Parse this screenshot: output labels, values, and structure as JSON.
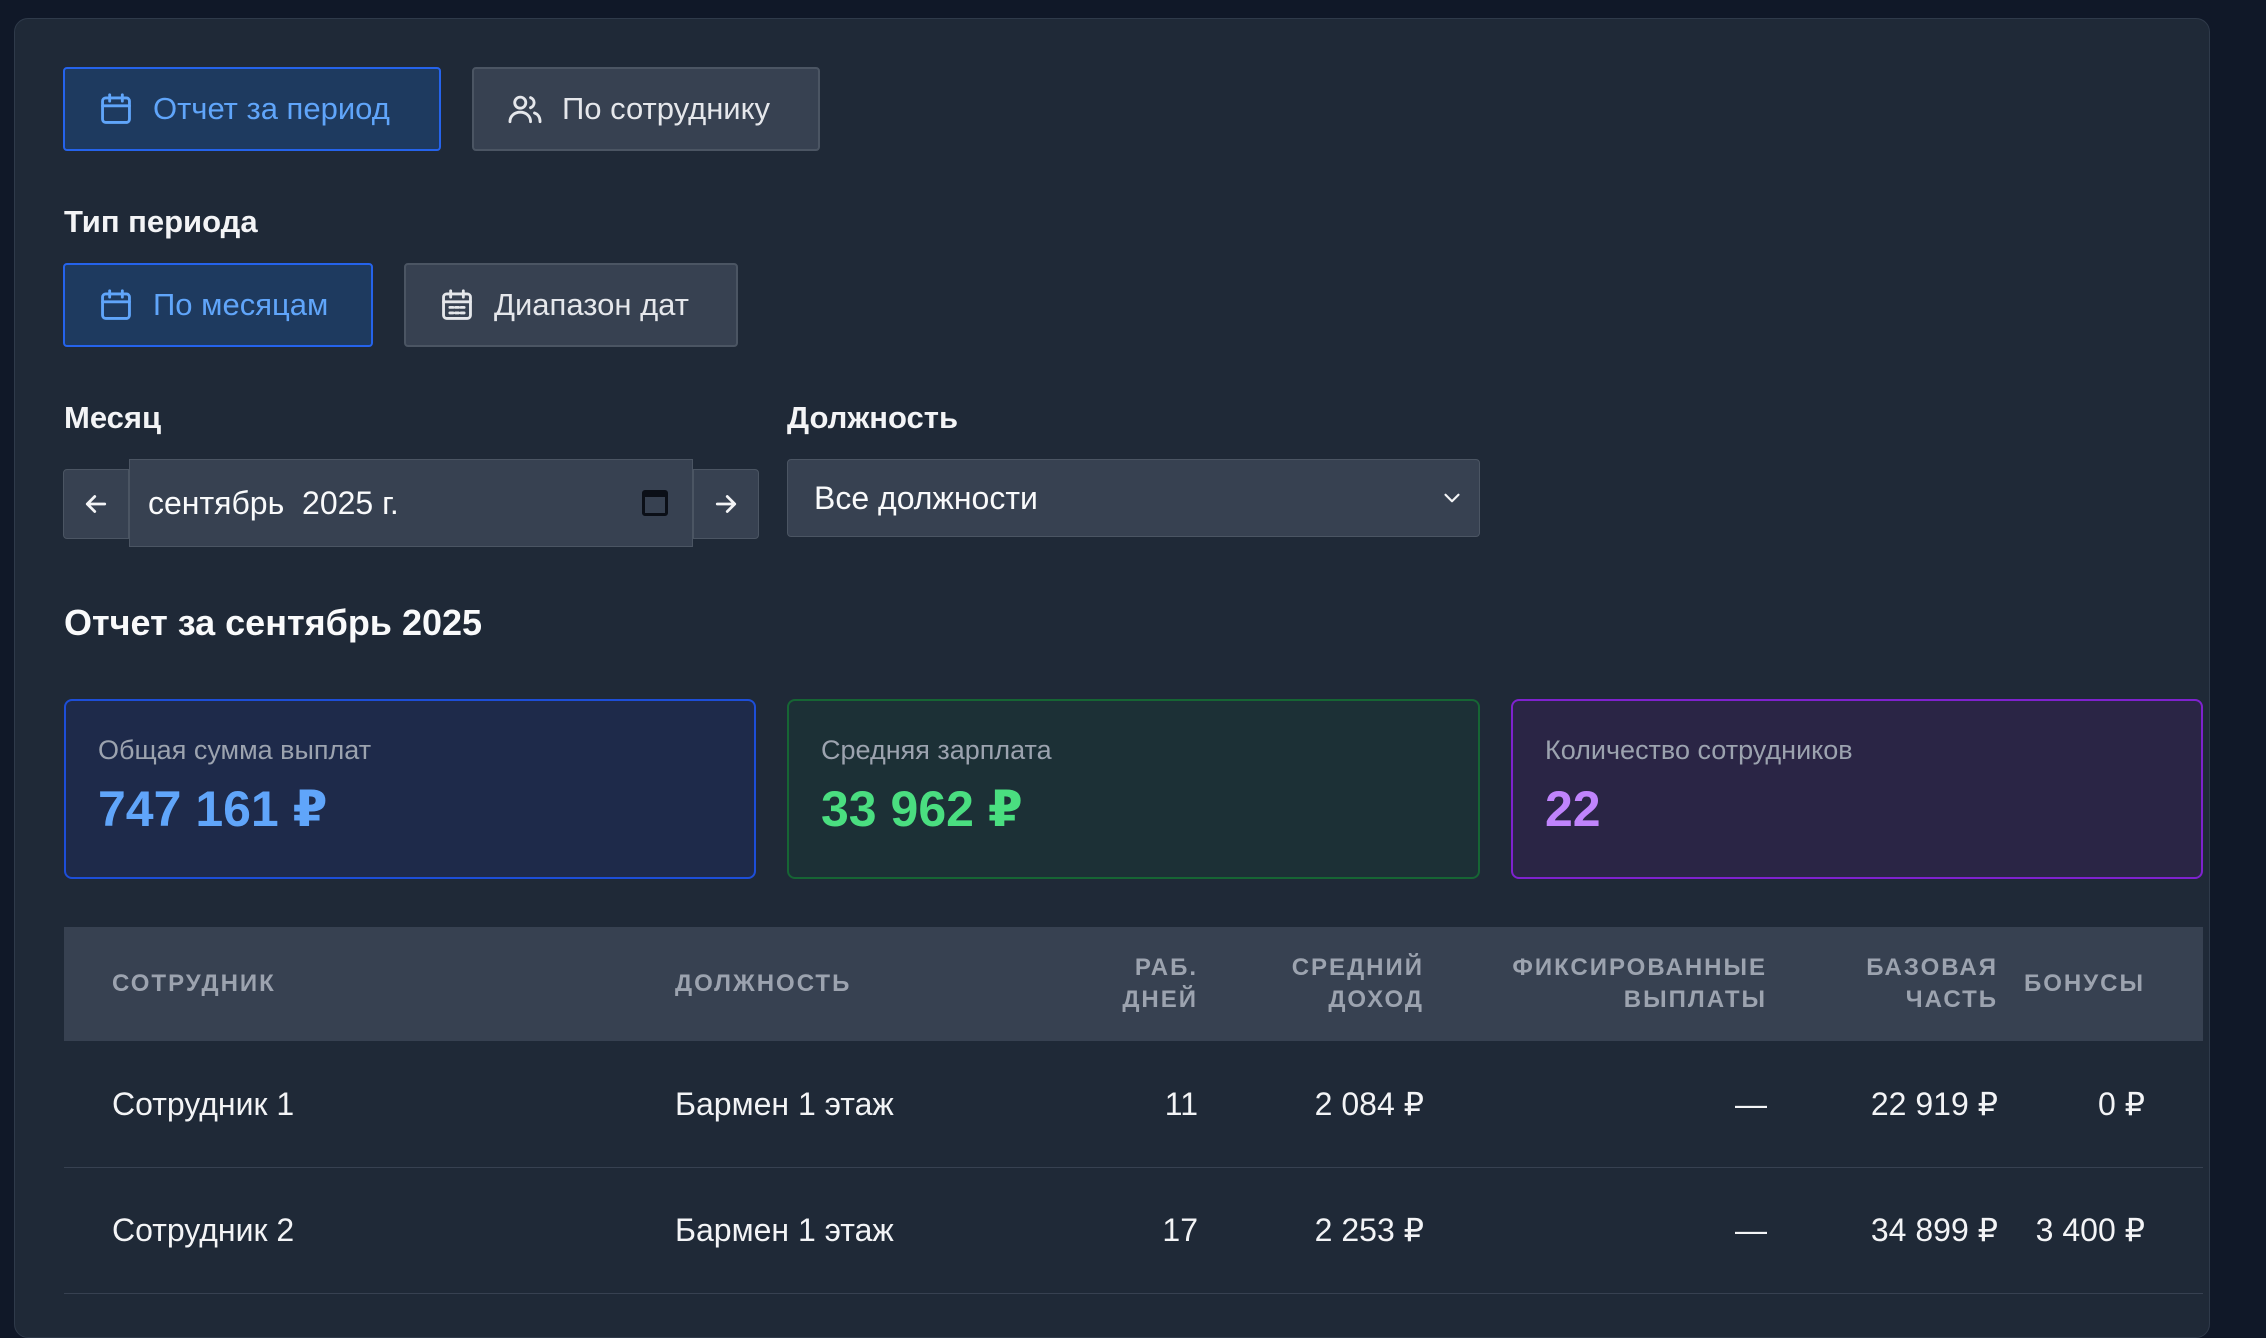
{
  "tabs": {
    "period_report": "Отчет за период",
    "by_employee": "По сотруднику"
  },
  "period_type": {
    "label": "Тип периода",
    "by_months": "По месяцам",
    "date_range": "Диапазон дат"
  },
  "month": {
    "label": "Месяц",
    "value": "сентябрь  2025 г."
  },
  "position": {
    "label": "Должность",
    "selected": "Все должности"
  },
  "report_title": "Отчет за сентябрь 2025",
  "stats": {
    "total": {
      "title": "Общая сумма выплат",
      "value": "747 161 ₽"
    },
    "average": {
      "title": "Средняя зарплата",
      "value": "33 962 ₽"
    },
    "count": {
      "title": "Количество сотрудников",
      "value": "22"
    }
  },
  "table": {
    "headers": {
      "employee": "СОТРУДНИК",
      "position": "ДОЛЖНОСТЬ",
      "work_days_1": "РАБ.",
      "work_days_2": "ДНЕЙ",
      "avg_income_1": "СРЕДНИЙ",
      "avg_income_2": "ДОХОД",
      "fixed_1": "ФИКСИРОВАННЫЕ",
      "fixed_2": "ВЫПЛАТЫ",
      "base_1": "БАЗОВАЯ",
      "base_2": "ЧАСТЬ",
      "bonuses": "БОНУСЫ"
    },
    "rows": [
      {
        "employee": "Сотрудник 1",
        "position": "Бармен 1 этаж",
        "days": "11",
        "avg": "2 084 ₽",
        "fixed": "—",
        "base": "22 919 ₽",
        "bonus": "0 ₽"
      },
      {
        "employee": "Сотрудник 2",
        "position": "Бармен 1 этаж",
        "days": "17",
        "avg": "2 253 ₽",
        "fixed": "—",
        "base": "34 899 ₽",
        "bonus": "3 400 ₽"
      }
    ]
  },
  "colors": {
    "accent_blue": "#60a5fa",
    "accent_green": "#4ade80",
    "accent_purple": "#c084fc"
  }
}
